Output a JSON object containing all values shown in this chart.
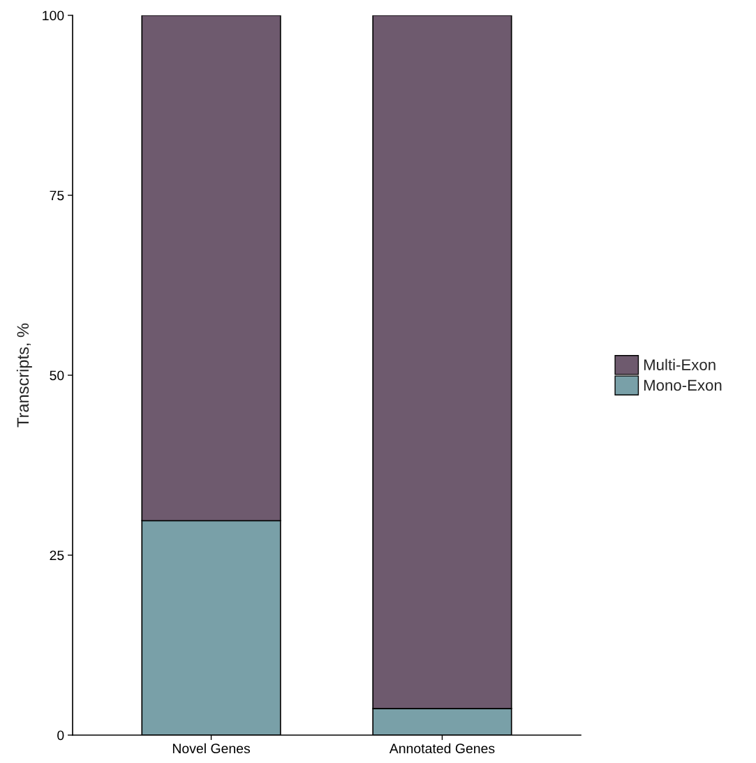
{
  "chart_data": {
    "type": "bar",
    "ylabel": "Transcripts, %",
    "categories": [
      "Novel Genes",
      "Annotated Genes"
    ],
    "stacked": true,
    "series": [
      {
        "name": "Mono-Exon",
        "color": "#79a0a8",
        "values": [
          29.8,
          3.7
        ]
      },
      {
        "name": "Multi-Exon",
        "color": "#6e5a6e",
        "values": [
          70.2,
          96.3
        ]
      }
    ],
    "ylim": [
      0,
      100
    ],
    "yticks": [
      0,
      25,
      50,
      75,
      100
    ],
    "grid": false,
    "legend": "right"
  }
}
